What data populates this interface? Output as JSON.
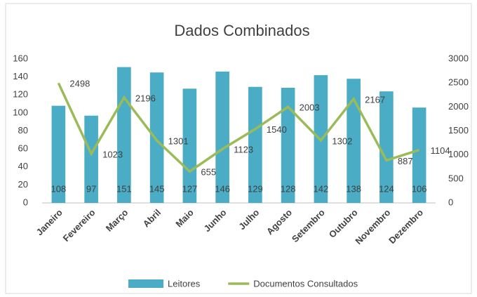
{
  "chart_data": {
    "type": "bar",
    "title": "Dados Combinados",
    "categories": [
      "Janeiro",
      "Fevereiro",
      "Março",
      "Abril",
      "Maio",
      "Junho",
      "Julho",
      "Agosto",
      "Setembro",
      "Outubro",
      "Novembro",
      "Dezembro"
    ],
    "series": [
      {
        "name": "Leitores",
        "type": "bar",
        "color": "#4bacc6",
        "values": [
          108,
          97,
          151,
          145,
          127,
          146,
          129,
          128,
          142,
          138,
          124,
          106
        ]
      },
      {
        "name": "Documentos Consultados",
        "type": "line",
        "axis": "y2",
        "color": "#9bbb59",
        "values": [
          2498,
          1023,
          2196,
          1301,
          655,
          1123,
          1540,
          2003,
          1302,
          2167,
          887,
          1104
        ]
      }
    ],
    "ylim": [
      0,
      160
    ],
    "yticks": [
      0,
      20,
      40,
      60,
      80,
      100,
      120,
      140,
      160
    ],
    "y2lim": [
      0,
      3000
    ],
    "y2ticks": [
      0,
      500,
      1000,
      1500,
      2000,
      2500,
      3000
    ],
    "legend": "bottom"
  }
}
